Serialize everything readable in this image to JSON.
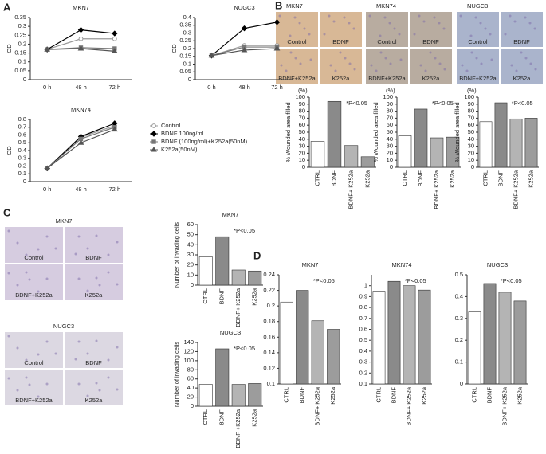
{
  "panel_labels": [
    "A",
    "B",
    "C",
    "D"
  ],
  "images": [
    {
      "title": "MKN7",
      "labels": [
        "Control",
        "BDNF",
        "BDNF+K252a",
        "K252a"
      ],
      "tint": "#d8b896"
    },
    {
      "title": "MKN74",
      "labels": [
        "Control",
        "BDNF",
        "BDNF+K252a",
        "K252a"
      ],
      "tint": "#b8aca0"
    },
    {
      "title": "NUGC3",
      "labels": [
        "Control",
        "BDNF",
        "BDNF+K252a",
        "K252a"
      ],
      "tint": "#aab4cc"
    },
    {
      "title": "MKN7",
      "labels": [
        "Control",
        "BDNF",
        "BDNF+K252a",
        "K252a"
      ],
      "tint": "#d6cce0"
    },
    {
      "title": "NUGC3",
      "labels": [
        "Control",
        "BDNF",
        "BDNF+K252a",
        "K252a"
      ],
      "tint": "#dcd8e2"
    }
  ],
  "chart_data": [
    {
      "type": "line",
      "title": "MKN7",
      "ylabel": "OD",
      "categories": [
        "0 h",
        "48 h",
        "72 h"
      ],
      "ylim": [
        0,
        0.35
      ],
      "yticks": [
        0,
        0.05,
        0.1,
        0.15,
        0.2,
        0.25,
        0.3,
        0.35
      ],
      "series": [
        {
          "name": "Control",
          "color": "#999999",
          "values": [
            0.17,
            0.23,
            0.23
          ]
        },
        {
          "name": "BDNF 100ng/ml",
          "color": "#000000",
          "values": [
            0.17,
            0.28,
            0.26
          ]
        },
        {
          "name": "BDNF (100ng/ml)+K252a(50nM)",
          "color": "#777777",
          "values": [
            0.17,
            0.18,
            0.175
          ]
        },
        {
          "name": "K252a(50nM)",
          "color": "#555555",
          "values": [
            0.17,
            0.175,
            0.16
          ]
        }
      ]
    },
    {
      "type": "line",
      "title": "NUGC3",
      "ylabel": "OD",
      "categories": [
        "0 h",
        "48 h",
        "72 h"
      ],
      "ylim": [
        0,
        0.4
      ],
      "yticks": [
        0,
        0.05,
        0.1,
        0.15,
        0.2,
        0.25,
        0.3,
        0.35,
        0.4
      ],
      "series": [
        {
          "name": "Control",
          "color": "#999999",
          "values": [
            0.155,
            0.22,
            0.22
          ]
        },
        {
          "name": "BDNF 100ng/ml",
          "color": "#000000",
          "values": [
            0.155,
            0.33,
            0.37
          ]
        },
        {
          "name": "BDNF (100ng/ml)+K252a(50nM)",
          "color": "#777777",
          "values": [
            0.155,
            0.21,
            0.21
          ]
        },
        {
          "name": "K252a(50nM)",
          "color": "#555555",
          "values": [
            0.155,
            0.19,
            0.2
          ]
        }
      ]
    },
    {
      "type": "line",
      "title": "MKN74",
      "ylabel": "OD",
      "categories": [
        "0 h",
        "48 h",
        "72 h"
      ],
      "legend": true,
      "ylim": [
        0,
        0.8
      ],
      "yticks": [
        0,
        0.1,
        0.2,
        0.3,
        0.4,
        0.5,
        0.6,
        0.7,
        0.8
      ],
      "series": [
        {
          "name": "Control",
          "color": "#999999",
          "values": [
            0.17,
            0.57,
            0.72
          ]
        },
        {
          "name": "BDNF 100ng/ml",
          "color": "#000000",
          "values": [
            0.17,
            0.58,
            0.75
          ]
        },
        {
          "name": "BDNF (100ng/ml)+K252a(50nM)",
          "color": "#777777",
          "values": [
            0.17,
            0.55,
            0.7
          ]
        },
        {
          "name": "K252a(50nM)",
          "color": "#555555",
          "values": [
            0.17,
            0.5,
            0.67
          ]
        }
      ]
    },
    {
      "type": "bar",
      "ylabel": "% Wounded area filled",
      "unit": "(%)",
      "note": "*P<0.05",
      "categories": [
        "CTRL",
        "BDNF",
        "BDNF+ K252a",
        "K252a"
      ],
      "values": [
        37,
        94,
        31,
        15
      ],
      "colors": [
        "#ffffff",
        "#8a8a8a",
        "#b4b4b4",
        "#9c9c9c"
      ],
      "ylim": [
        0,
        100
      ],
      "yticks": [
        0,
        10,
        20,
        30,
        40,
        50,
        60,
        70,
        80,
        90,
        100
      ]
    },
    {
      "type": "bar",
      "ylabel": "% Wounded area filled",
      "unit": "(%)",
      "note": "*P<0.05",
      "categories": [
        "CTRL",
        "BDNF",
        "BDNF+ K252a",
        "K252a"
      ],
      "values": [
        45,
        83,
        42,
        43
      ],
      "colors": [
        "#ffffff",
        "#8a8a8a",
        "#b4b4b4",
        "#9c9c9c"
      ],
      "ylim": [
        0,
        100
      ],
      "yticks": [
        0,
        10,
        20,
        30,
        40,
        50,
        60,
        70,
        80,
        90,
        100
      ]
    },
    {
      "type": "bar",
      "ylabel": "% Wounded area filled",
      "unit": "(%)",
      "note": "*P<0.05",
      "categories": [
        "CTRL",
        "BDNF",
        "BDNF+ K252a",
        "K252a"
      ],
      "values": [
        65,
        92,
        69,
        70
      ],
      "colors": [
        "#ffffff",
        "#8a8a8a",
        "#b4b4b4",
        "#9c9c9c"
      ],
      "ylim": [
        0,
        100
      ],
      "yticks": [
        0,
        10,
        20,
        30,
        40,
        50,
        60,
        70,
        80,
        90,
        100
      ]
    },
    {
      "type": "bar",
      "title": "MKN7",
      "ylabel": "Number of invading cells",
      "note": "*P<0.05",
      "categories": [
        "CTRL",
        "BDNF",
        "BDNF+ K252a",
        "K252a"
      ],
      "values": [
        28,
        48,
        15,
        14
      ],
      "colors": [
        "#ffffff",
        "#8a8a8a",
        "#b4b4b4",
        "#9c9c9c"
      ],
      "ylim": [
        0,
        60
      ],
      "yticks": [
        0,
        10,
        20,
        30,
        40,
        50,
        60
      ]
    },
    {
      "type": "bar",
      "title": "NUGC3",
      "ylabel": "Number of invading cells",
      "note": "*P<0.05",
      "categories": [
        "CTRL",
        "8DNF",
        "BDNF +K252a",
        "K252a"
      ],
      "values": [
        48,
        126,
        48,
        50
      ],
      "colors": [
        "#ffffff",
        "#8a8a8a",
        "#b4b4b4",
        "#9c9c9c"
      ],
      "ylim": [
        0,
        140
      ],
      "yticks": [
        0,
        20,
        40,
        60,
        80,
        100,
        120,
        140
      ]
    },
    {
      "type": "bar",
      "title": "MKN7",
      "note": "*P<0.05",
      "categories": [
        "CTRL",
        "BDNF",
        "BDNF+ K252a",
        "K252a"
      ],
      "values": [
        0.205,
        0.22,
        0.181,
        0.17
      ],
      "colors": [
        "#ffffff",
        "#8a8a8a",
        "#b4b4b4",
        "#9c9c9c"
      ],
      "ylim": [
        0.1,
        0.24
      ],
      "yticks": [
        0.1,
        0.12,
        0.14,
        0.16,
        0.18,
        0.2,
        0.22,
        0.24
      ]
    },
    {
      "type": "bar",
      "title": "MKN74",
      "note": "*P<0.05",
      "categories": [
        "CTRL",
        "BDNF",
        "BDNF+ K252a",
        "K252a"
      ],
      "values": [
        0.95,
        1.04,
        1.0,
        0.96
      ],
      "colors": [
        "#ffffff",
        "#8a8a8a",
        "#b4b4b4",
        "#9c9c9c"
      ],
      "ylim": [
        0.1,
        1.1
      ],
      "yticks": [
        0.1,
        0.2,
        0.3,
        0.4,
        0.5,
        0.6,
        0.7,
        0.8,
        0.9,
        1
      ]
    },
    {
      "type": "bar",
      "title": "NUGC3",
      "note": "*P<0.05",
      "categories": [
        "CTRL",
        "BDNF",
        "BDNF+ K252a",
        "K252a"
      ],
      "values": [
        0.33,
        0.46,
        0.42,
        0.38
      ],
      "colors": [
        "#ffffff",
        "#8a8a8a",
        "#b4b4b4",
        "#9c9c9c"
      ],
      "ylim": [
        0,
        0.5
      ],
      "yticks": [
        0,
        0.1,
        0.2,
        0.3,
        0.4,
        0.5
      ]
    }
  ]
}
